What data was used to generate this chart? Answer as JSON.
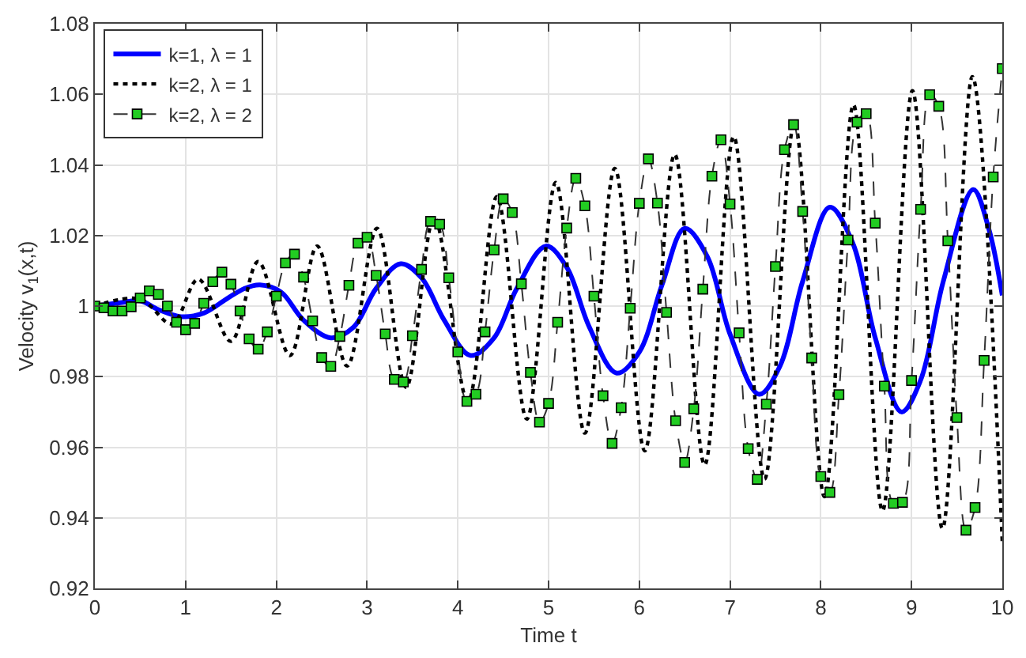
{
  "chart_data": {
    "type": "line",
    "xlabel": "Time t",
    "ylabel": "Velocity v$_{1}$(x,t)",
    "xlim": [
      0,
      10
    ],
    "ylim": [
      0.92,
      1.08
    ],
    "xticks": [
      0,
      1,
      2,
      3,
      4,
      5,
      6,
      7,
      8,
      9,
      10
    ],
    "yticks": [
      0.92,
      0.94,
      0.96,
      0.98,
      1,
      1.02,
      1.04,
      1.06,
      1.08
    ],
    "grid": true,
    "legend": "top left",
    "series": [
      {
        "name": "k=1, λ = 1",
        "color": "#0000ff",
        "line_style": "solid",
        "marker": "none",
        "x": [
          0,
          0.3,
          0.5,
          0.7,
          0.95,
          1.2,
          1.45,
          1.65,
          1.82,
          2.05,
          2.3,
          2.6,
          2.85,
          3.1,
          3.37,
          3.6,
          3.85,
          4.14,
          4.4,
          4.65,
          4.97,
          5.2,
          5.45,
          5.75,
          6,
          6.25,
          6.5,
          6.75,
          7,
          7.32,
          7.55,
          7.8,
          8.1,
          8.35,
          8.6,
          8.89,
          9.1,
          9.35,
          9.68,
          9.85,
          10
        ],
        "values": [
          1,
          1.001,
          1.0015,
          0.999,
          0.997,
          0.998,
          1.002,
          1.005,
          1.006,
          1.004,
          0.996,
          0.991,
          0.994,
          1.005,
          1.012,
          1.008,
          0.996,
          0.986,
          0.991,
          1.005,
          1.017,
          1.011,
          0.994,
          0.981,
          0.987,
          1.006,
          1.022,
          1.014,
          0.992,
          0.975,
          0.983,
          1.007,
          1.028,
          1.018,
          0.991,
          0.97,
          0.979,
          1.007,
          1.033,
          1.022,
          1.003
        ]
      },
      {
        "name": "k=2, λ = 1",
        "color": "#000000",
        "line_style": "dotted",
        "marker": "none",
        "x": [
          0,
          0.5,
          0.85,
          1.14,
          1.5,
          1.8,
          2.15,
          2.45,
          2.78,
          3.11,
          3.43,
          3.74,
          4.11,
          4.43,
          4.76,
          5.08,
          5.4,
          5.73,
          6.06,
          6.39,
          6.72,
          7.04,
          7.38,
          7.71,
          8.04,
          8.36,
          8.68,
          9.01,
          9.34,
          9.67,
          10
        ],
        "values": [
          1,
          1.002,
          0.995,
          1.0076,
          0.99,
          1.0126,
          0.986,
          1.017,
          0.983,
          1.022,
          0.977,
          1.025,
          0.973,
          1.031,
          0.968,
          1.035,
          0.964,
          1.039,
          0.959,
          1.043,
          0.955,
          1.048,
          0.951,
          1.052,
          0.946,
          1.057,
          0.942,
          1.061,
          0.937,
          1.065,
          0.933
        ]
      },
      {
        "name": "k=2, λ = 2",
        "color": "#22cc22",
        "line_style": "dashed",
        "marker": "square",
        "x": [
          0,
          0.1,
          0.2,
          0.3,
          0.4,
          0.5,
          0.6,
          0.7,
          0.8,
          0.9,
          1,
          1.1,
          1.2,
          1.3,
          1.4,
          1.5,
          1.6,
          1.7,
          1.8,
          1.9,
          2,
          2.1,
          2.2,
          2.3,
          2.4,
          2.5,
          2.6,
          2.7,
          2.8,
          2.9,
          3,
          3.1,
          3.2,
          3.3,
          3.4,
          3.5,
          3.6,
          3.7,
          3.8,
          3.9,
          4,
          4.1,
          4.2,
          4.3,
          4.4,
          4.5,
          4.6,
          4.7,
          4.8,
          4.9,
          5,
          5.1,
          5.2,
          5.3,
          5.4,
          5.5,
          5.6,
          5.7,
          5.8,
          5.9,
          6,
          6.1,
          6.2,
          6.3,
          6.4,
          6.5,
          6.6,
          6.7,
          6.8,
          6.9,
          7,
          7.1,
          7.2,
          7.3,
          7.4,
          7.5,
          7.6,
          7.7,
          7.8,
          7.9,
          8,
          8.1,
          8.2,
          8.3,
          8.4,
          8.5,
          8.6,
          8.7,
          8.8,
          8.9,
          9,
          9.1,
          9.2,
          9.3,
          9.4,
          9.5,
          9.6,
          9.7,
          9.8,
          9.9,
          10
        ],
        "values": [
          1,
          0.9995,
          0.9986,
          0.9986,
          0.9998,
          1.0023,
          1.0043,
          1.0033,
          1,
          0.9954,
          0.9933,
          0.9951,
          1.0008,
          1.0069,
          1.0096,
          1.0062,
          0.9986,
          0.9907,
          0.9878,
          0.9927,
          1.0028,
          1.0122,
          1.0147,
          1.0082,
          0.9958,
          0.9854,
          0.9829,
          0.9914,
          1.0059,
          1.0178,
          1.0195,
          1.0087,
          0.9921,
          0.9792,
          0.9785,
          0.9916,
          1.0104,
          1.024,
          1.0232,
          1.008,
          0.987,
          0.973,
          0.975,
          0.9927,
          1.0159,
          1.0304,
          1.0265,
          1.0063,
          0.9812,
          0.9671,
          0.9724,
          0.9954,
          1.0221,
          1.0362,
          1.0284,
          1.0028,
          0.9746,
          0.9611,
          0.9712,
          0.9994,
          1.0291,
          1.0417,
          1.0292,
          0.9982,
          0.9675,
          0.9557,
          0.9709,
          1.0048,
          1.0368,
          1.0471,
          1.0289,
          0.9924,
          0.9596,
          0.9509,
          0.9722,
          1.0112,
          1.0443,
          1.0514,
          1.0268,
          0.9853,
          0.9517,
          0.9472,
          0.9749,
          1.0187,
          1.0521,
          1.0545,
          1.0235,
          0.9773,
          0.9441,
          0.9444,
          0.9789,
          1.0274,
          1.0599,
          1.0566,
          1.0185,
          0.9684,
          0.9365,
          0.9429,
          0.9846,
          1.0366,
          1.0673
        ]
      }
    ]
  }
}
